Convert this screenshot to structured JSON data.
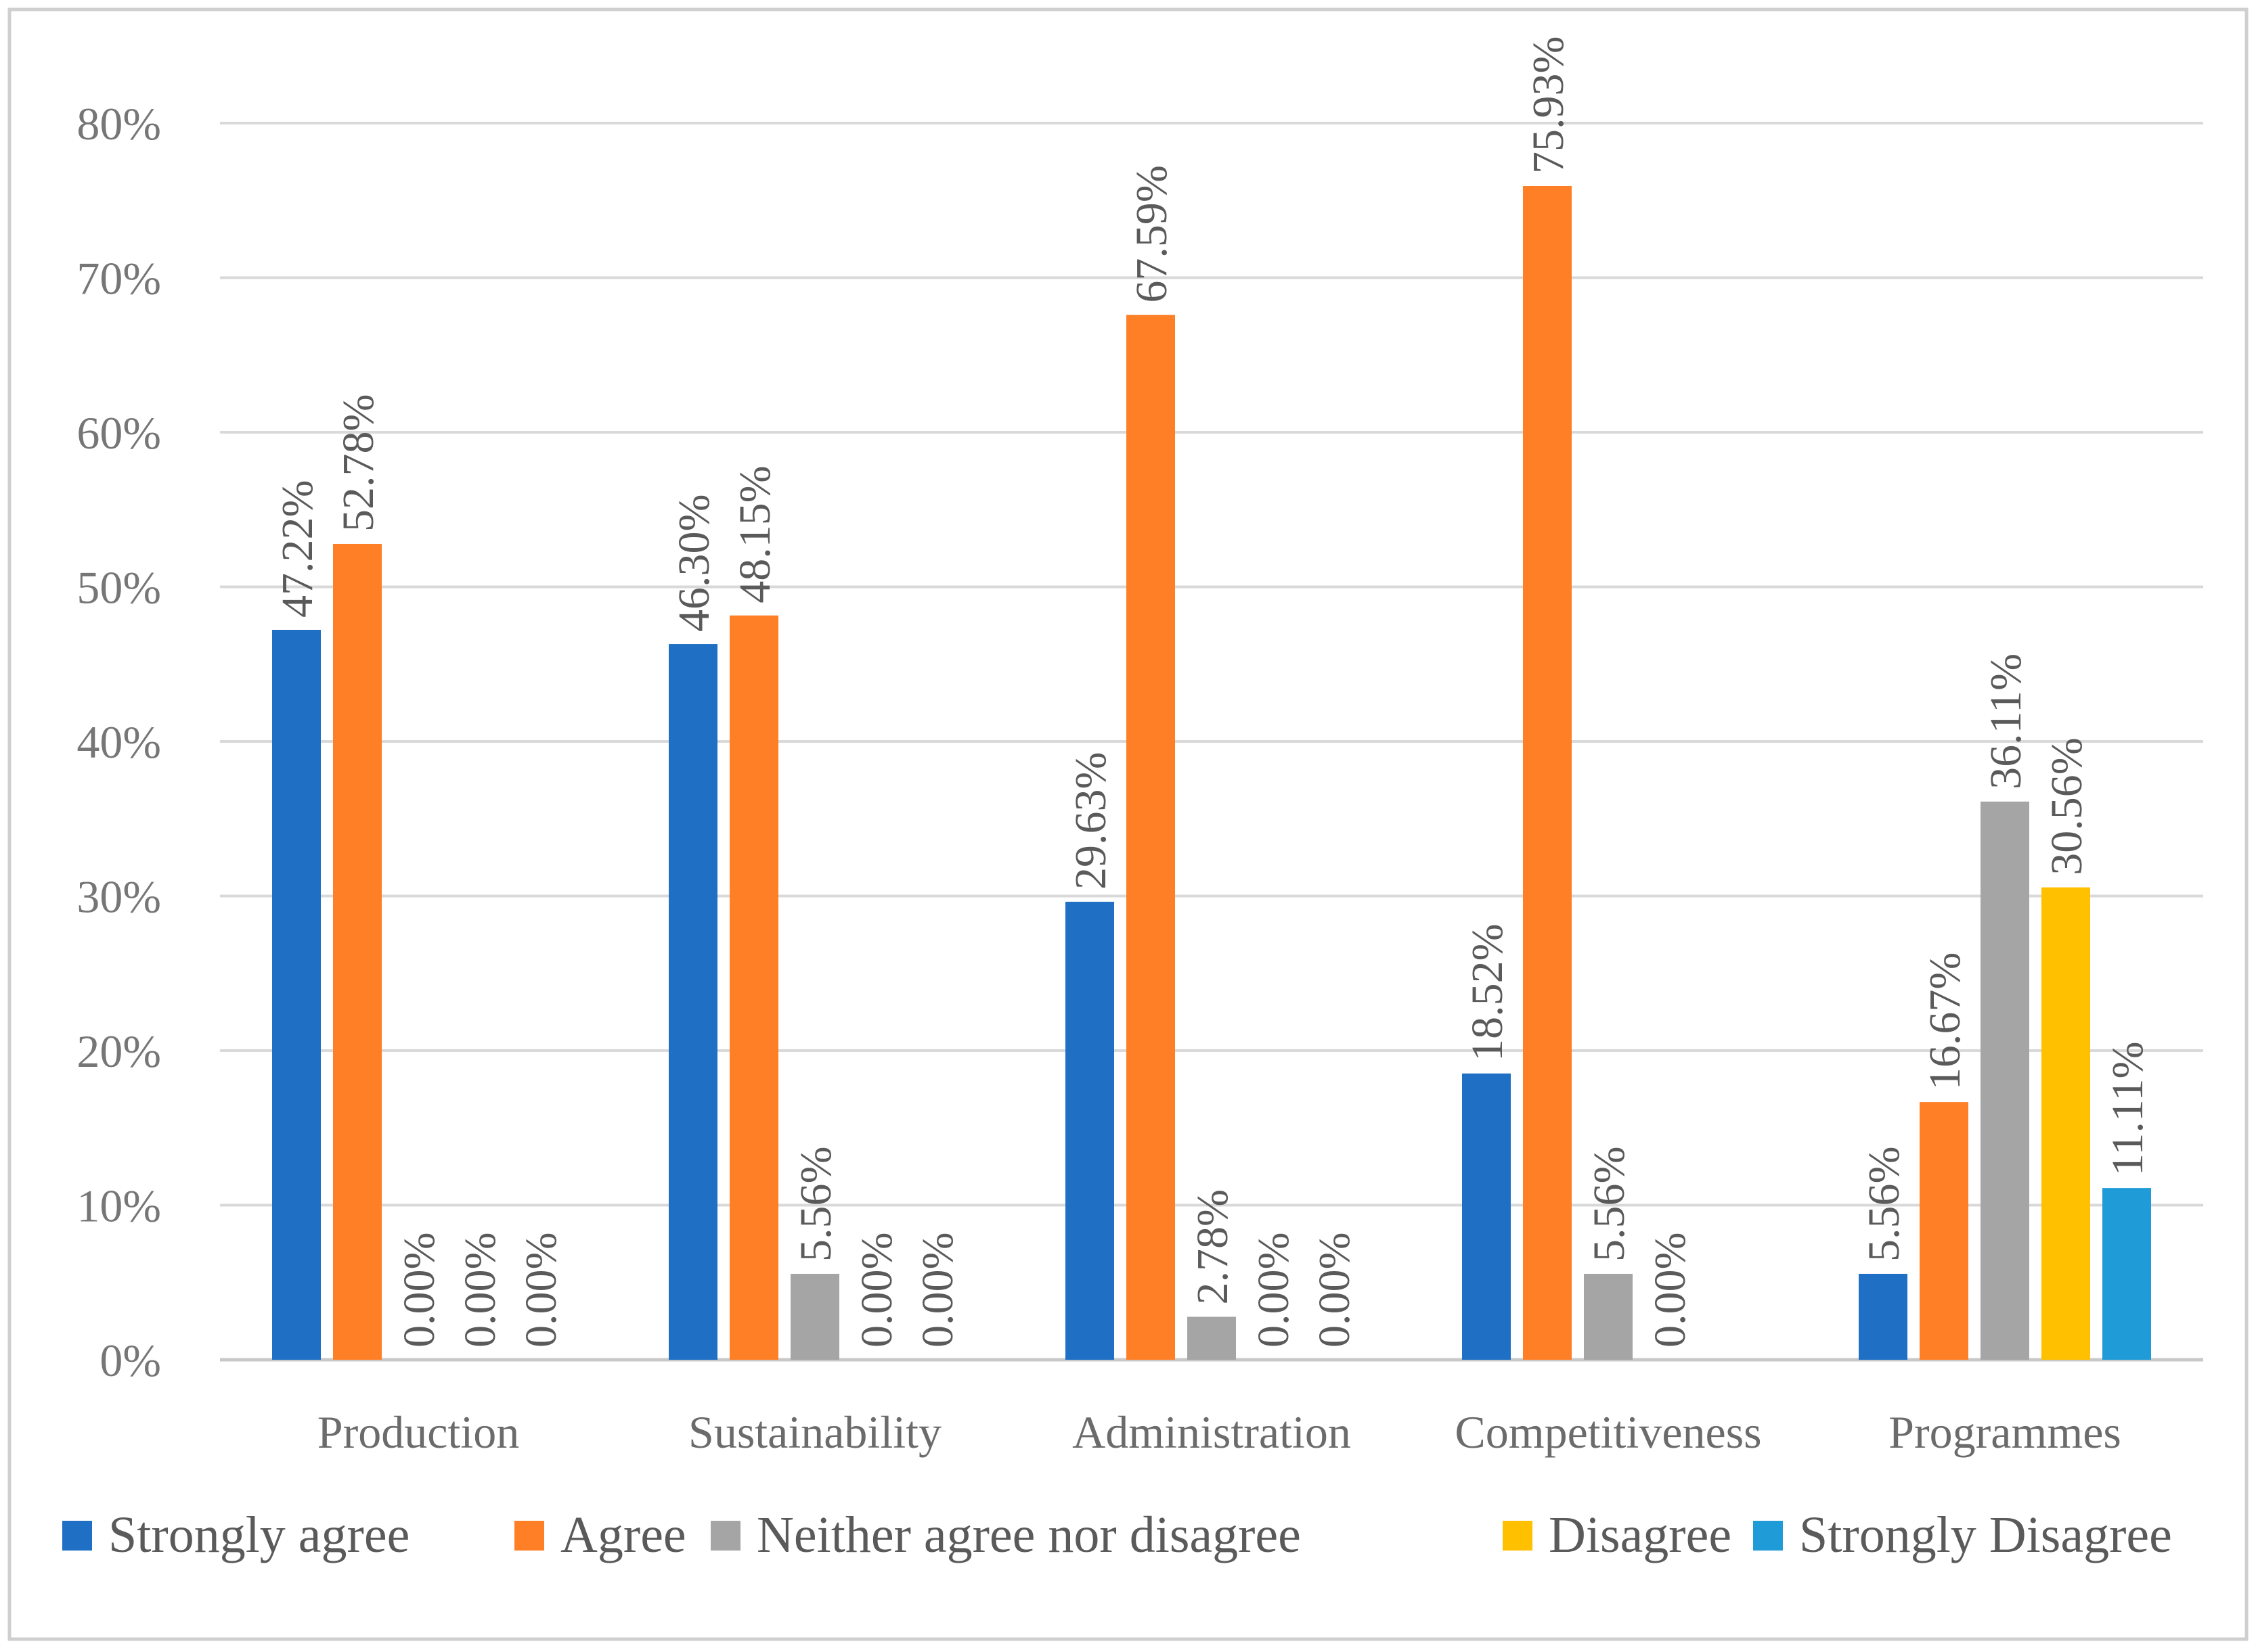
{
  "chart_data": {
    "type": "bar",
    "title": "",
    "xlabel": "",
    "ylabel": "",
    "ylim": [
      0,
      0.8
    ],
    "y_ticks": [
      {
        "value": 0,
        "label": "0%"
      },
      {
        "value": 0.1,
        "label": "10%"
      },
      {
        "value": 0.2,
        "label": "20%"
      },
      {
        "value": 0.3,
        "label": "30%"
      },
      {
        "value": 0.4,
        "label": "40%"
      },
      {
        "value": 0.5,
        "label": "50%"
      },
      {
        "value": 0.6,
        "label": "60%"
      },
      {
        "value": 0.7,
        "label": "70%"
      },
      {
        "value": 0.8,
        "label": "80%"
      }
    ],
    "grid": true,
    "legend_position": "bottom",
    "categories": [
      "Production",
      "Sustainability",
      "Administration",
      "Competitiveness",
      "Programmes"
    ],
    "series": [
      {
        "name": "Strongly agree",
        "color": "#1F6FC5",
        "values": [
          0.4722,
          0.463,
          0.2963,
          0.1852,
          0.0556
        ],
        "labels": [
          "47.22%",
          "46.30%",
          "29.63%",
          "18.52%",
          "5.56%"
        ],
        "shown": [
          true,
          true,
          true,
          true,
          true
        ]
      },
      {
        "name": "Agree",
        "color": "#FF7F27",
        "values": [
          0.5278,
          0.4815,
          0.6759,
          0.7593,
          0.1667
        ],
        "labels": [
          "52.78%",
          "48.15%",
          "67.59%",
          "75.93%",
          "16.67%"
        ],
        "shown": [
          true,
          true,
          true,
          true,
          true
        ]
      },
      {
        "name": "Neither agree nor disagree",
        "color": "#A5A5A5",
        "values": [
          0,
          0.0556,
          0.0278,
          0.0556,
          0.3611
        ],
        "labels": [
          "0.00%",
          "5.56%",
          "2.78%",
          "5.56%",
          "36.11%"
        ],
        "shown": [
          true,
          true,
          true,
          true,
          true
        ]
      },
      {
        "name": "Disagree",
        "color": "#FFC000",
        "values": [
          0,
          0,
          0,
          0,
          0.3056
        ],
        "labels": [
          "0.00%",
          "0.00%",
          "0.00%",
          "0.00%",
          "30.56%"
        ],
        "shown": [
          true,
          true,
          true,
          true,
          true
        ]
      },
      {
        "name": "Strongly Disagree",
        "color": "#1F9BD7",
        "values": [
          0,
          0,
          0,
          0,
          0.1111
        ],
        "labels": [
          "0.00%",
          "0.00%",
          "0.00%",
          "",
          "11.11%"
        ],
        "shown": [
          true,
          true,
          true,
          false,
          true
        ]
      }
    ]
  }
}
